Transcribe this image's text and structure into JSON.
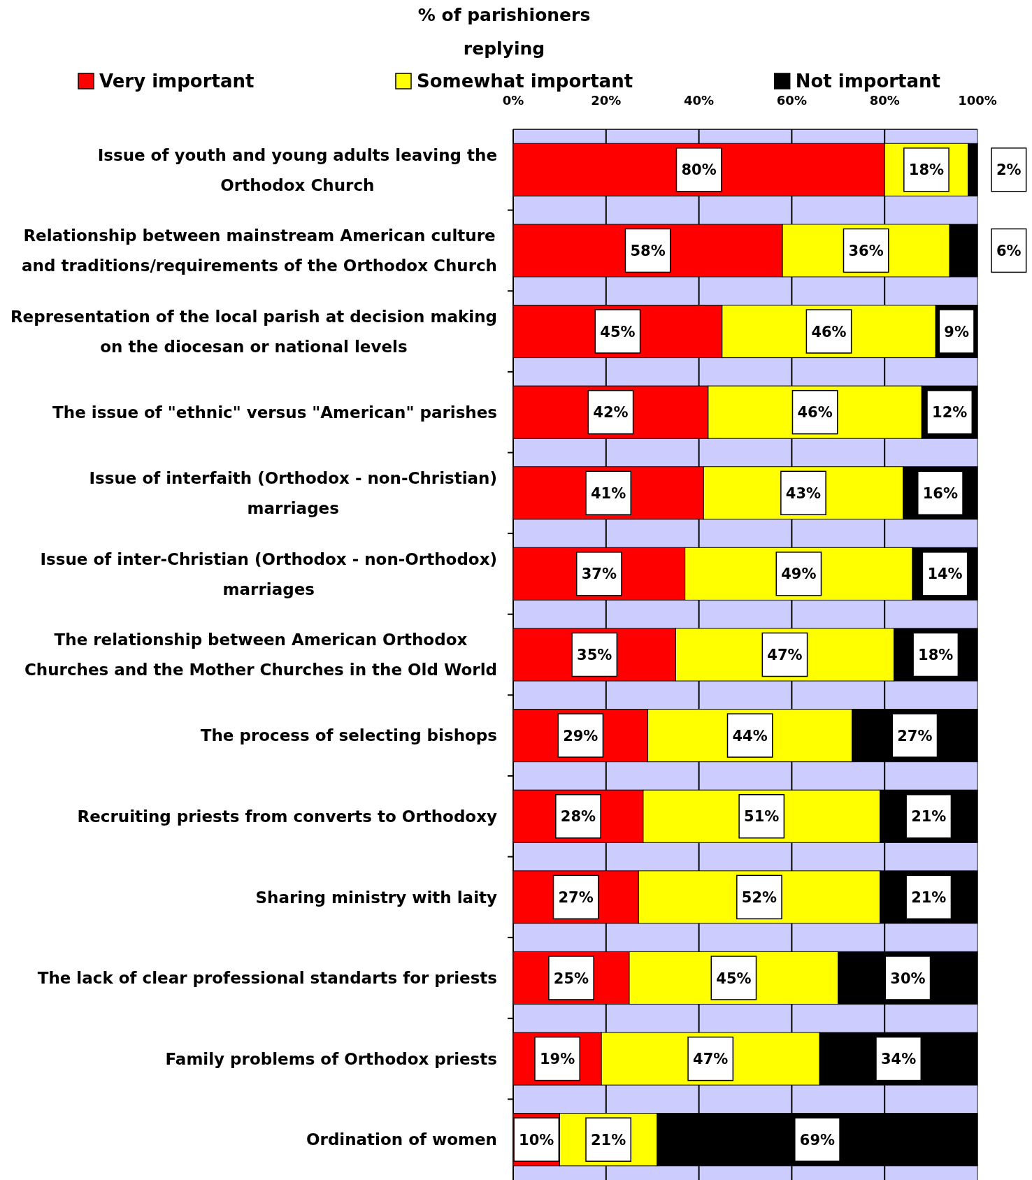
{
  "chart_data": {
    "type": "bar",
    "orientation": "horizontal",
    "stacked": true,
    "title": "% of parishioners replying",
    "categories": [
      "Issue of youth and young adults leaving the Orthodox Church",
      "Relationship between mainstream American culture and traditions/requirements of the Orthodox Church",
      "Representation of the local parish at decision making on the diocesan or national levels",
      "The issue of \"ethnic\" versus \"American\" parishes",
      "Issue of interfaith (Orthodox - non-Christian) marriages",
      "Issue of inter-Christian (Orthodox - non-Orthodox) marriages",
      "The relationship between American Orthodox Churches and the Mother Churches in the Old World",
      "The process of selecting bishops",
      "Recruiting priests from converts to Orthodoxy",
      "Sharing ministry with laity",
      "The lack of clear professional standarts for priests",
      "Family problems of Orthodox priests",
      "Ordination of women"
    ],
    "series": [
      {
        "name": "Very important",
        "color": "#ff0000",
        "values": [
          80,
          58,
          45,
          42,
          41,
          37,
          35,
          29,
          28,
          27,
          25,
          19,
          10
        ],
        "value_labels": [
          "80%",
          "58%",
          "45%",
          "42%",
          "41%",
          "37%",
          "35%",
          "29%",
          "28%",
          "27%",
          "25%",
          "19%",
          "10%"
        ]
      },
      {
        "name": "Somewhat important",
        "color": "#ffff00",
        "values": [
          18,
          36,
          46,
          46,
          43,
          49,
          47,
          44,
          51,
          52,
          45,
          47,
          21
        ],
        "value_labels": [
          "18%",
          "36%",
          "46%",
          "46%",
          "43%",
          "49%",
          "47%",
          "44%",
          "51%",
          "52%",
          "45%",
          "47%",
          "21%"
        ]
      },
      {
        "name": "Not important",
        "color": "#000000",
        "values": [
          2,
          6,
          9,
          12,
          16,
          14,
          18,
          27,
          21,
          21,
          30,
          34,
          69
        ],
        "value_labels": [
          "2%",
          "6%",
          "9%",
          "12%",
          "16%",
          "14%",
          "18%",
          "27%",
          "21%",
          "21%",
          "30%",
          "34%",
          "69%"
        ]
      }
    ],
    "xlim": [
      0,
      100
    ],
    "xticks": [
      {
        "value": 0,
        "label": "0%"
      },
      {
        "value": 20,
        "label": "20%"
      },
      {
        "value": 40,
        "label": "40%"
      },
      {
        "value": 60,
        "label": "60%"
      },
      {
        "value": 80,
        "label": "80%"
      },
      {
        "value": 100,
        "label": "100%"
      }
    ],
    "grid": "x",
    "legend": "top"
  }
}
